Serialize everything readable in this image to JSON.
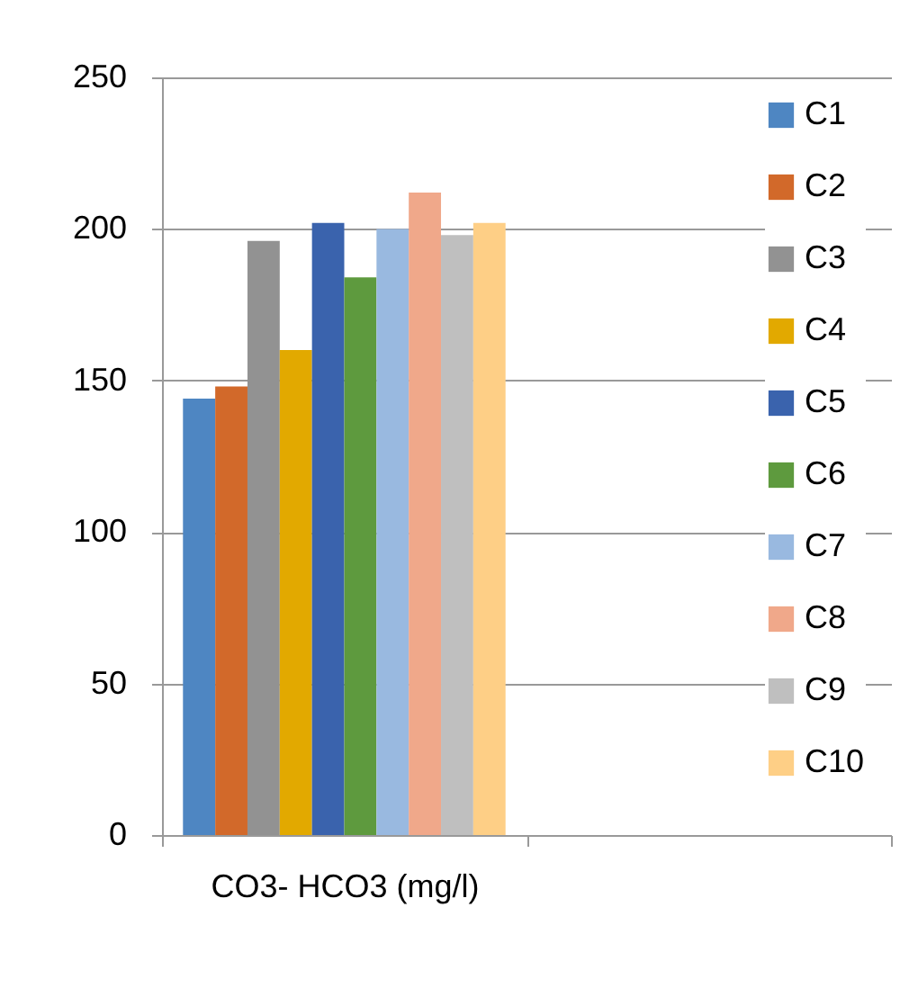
{
  "chart_data": {
    "type": "bar",
    "categories": [
      "CO3- HCO3 (mg/l)",
      null
    ],
    "series": [
      {
        "name": "C1",
        "color": "#4e86c2",
        "values": [
          144,
          null
        ]
      },
      {
        "name": "C2",
        "color": "#d2692a",
        "values": [
          148,
          null
        ]
      },
      {
        "name": "C3",
        "color": "#929292",
        "values": [
          196,
          null
        ]
      },
      {
        "name": "C4",
        "color": "#e2a900",
        "values": [
          160,
          null
        ]
      },
      {
        "name": "C5",
        "color": "#3a63ad",
        "values": [
          202,
          null
        ]
      },
      {
        "name": "C6",
        "color": "#5e9a3e",
        "values": [
          184,
          null
        ]
      },
      {
        "name": "C7",
        "color": "#99b9e0",
        "values": [
          200,
          null
        ]
      },
      {
        "name": "C8",
        "color": "#f0a88a",
        "values": [
          212,
          null
        ]
      },
      {
        "name": "C9",
        "color": "#bfbfbf",
        "values": [
          198,
          null
        ]
      },
      {
        "name": "C10",
        "color": "#fecf86",
        "values": [
          202,
          null
        ]
      }
    ],
    "ylim": [
      0,
      250
    ],
    "yticks": [
      0,
      50,
      100,
      150,
      200,
      250
    ],
    "grid": "y",
    "legend": "right"
  }
}
